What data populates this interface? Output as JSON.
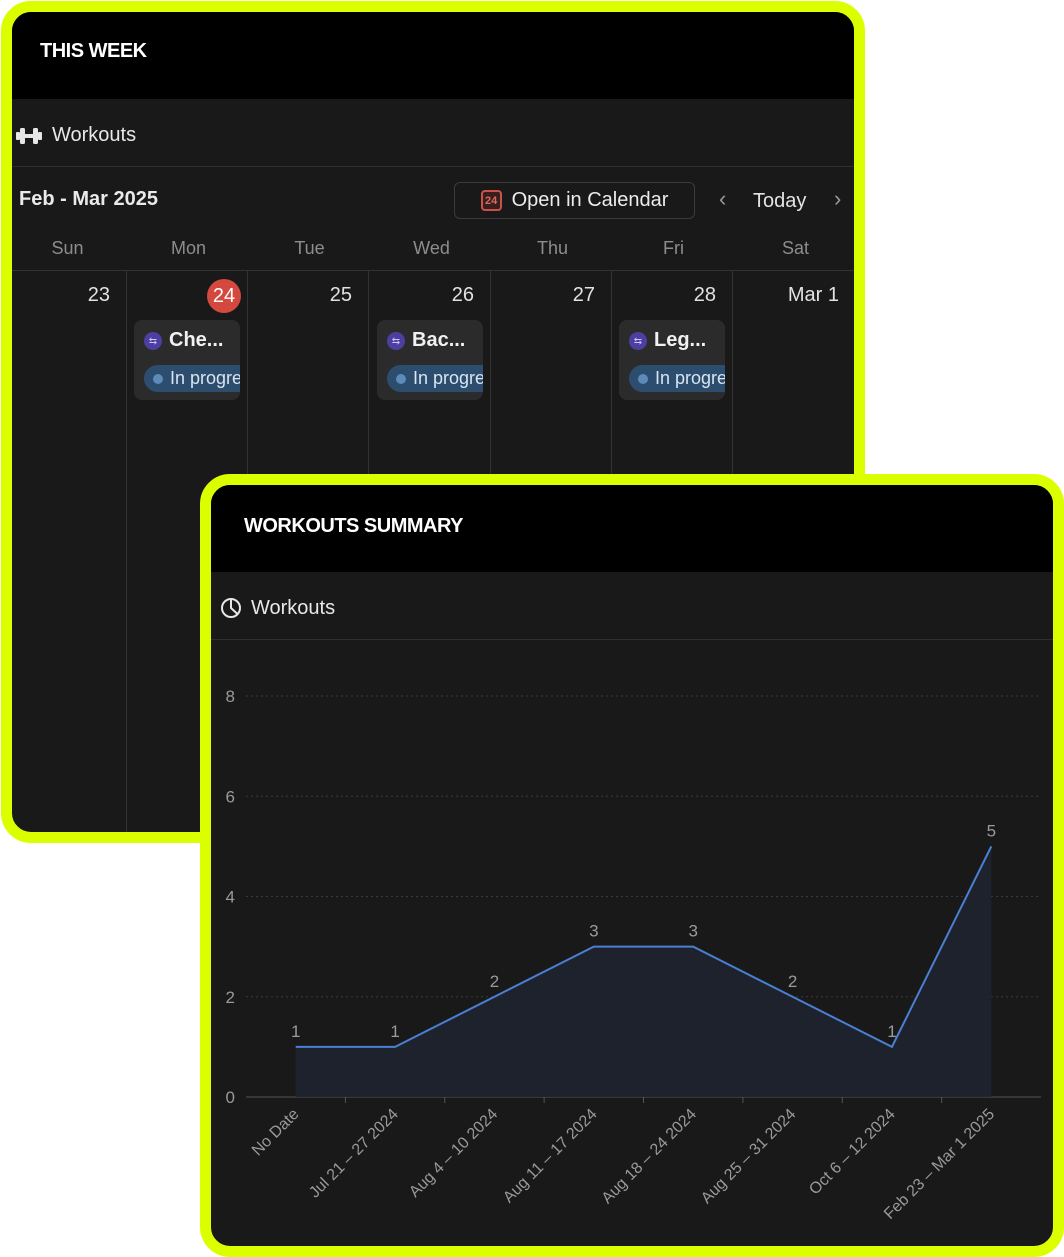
{
  "week": {
    "title": "THIS WEEK",
    "db_name": "Workouts",
    "db_icon": "dumbbell-icon",
    "month_label": "Feb - Mar 2025",
    "open_button": "Open in Calendar",
    "calendar_icon_day": "24",
    "today_label": "Today",
    "weekdays": [
      "Sun",
      "Mon",
      "Tue",
      "Wed",
      "Thu",
      "Fri",
      "Sat"
    ],
    "days": [
      "23",
      "24",
      "25",
      "26",
      "27",
      "28",
      "Mar 1"
    ],
    "today_highlight_color": "#d4493f",
    "events": [
      {
        "title": "Che...",
        "status": "In progress"
      },
      {
        "title": "Bac...",
        "status": "In progress"
      },
      {
        "title": "Leg...",
        "status": "In progress"
      }
    ]
  },
  "summary": {
    "title": "WORKOUTS SUMMARY",
    "db_name": "Workouts",
    "db_icon": "pie-chart-icon"
  },
  "accent_color": "#dcff00",
  "chart_data": {
    "type": "line",
    "categories": [
      "No Date",
      "Jul 21 – 27 2024",
      "Aug 4 – 10 2024",
      "Aug 11 – 17 2024",
      "Aug 18 – 24 2024",
      "Aug 25 – 31 2024",
      "Oct 6 – 12 2024",
      "Feb 23 – Mar 1 2025"
    ],
    "values": [
      1,
      1,
      2,
      3,
      3,
      2,
      1,
      5
    ],
    "yticks": [
      0,
      2,
      4,
      6,
      8
    ],
    "ylim": [
      0,
      8
    ],
    "grid": true,
    "data_labels": true,
    "line_color": "#4a7fd4"
  }
}
